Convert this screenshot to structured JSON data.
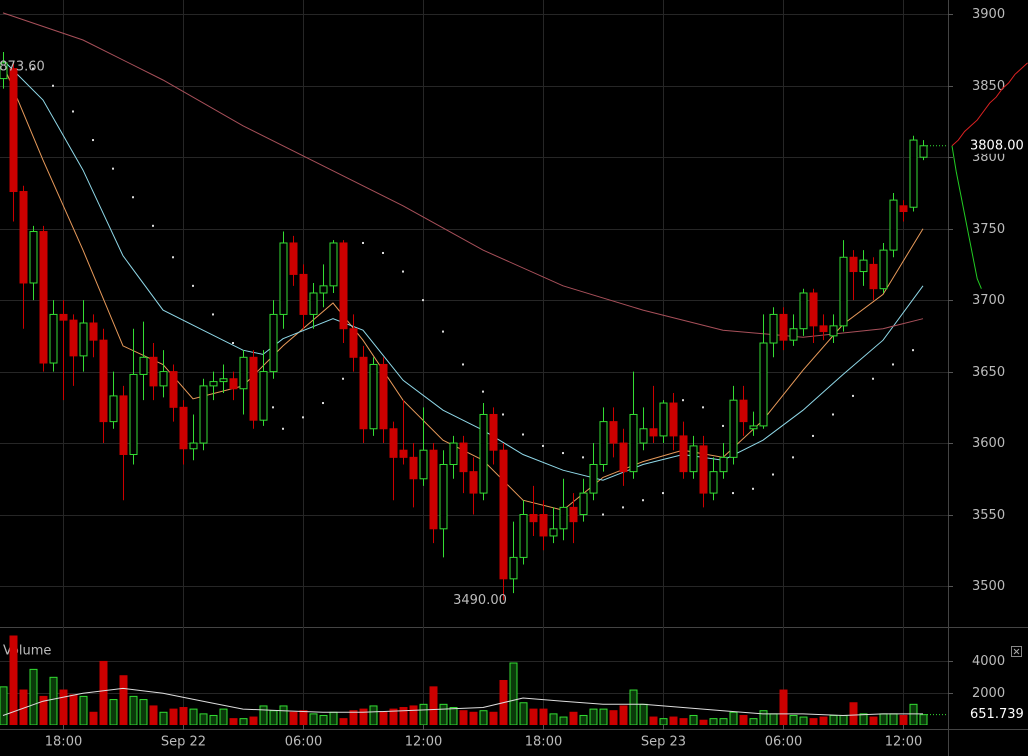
{
  "chart_data": {
    "type": "candlestick",
    "up_color": "#33dd33",
    "down_color": "#cc0000",
    "xlim": [
      -0.3,
      94.5
    ],
    "xticks": [
      {
        "value": 6,
        "label": "18:00"
      },
      {
        "value": 18,
        "label": "Sep 22"
      },
      {
        "value": 30,
        "label": "06:00"
      },
      {
        "value": 42,
        "label": "12:00"
      },
      {
        "value": 54,
        "label": "18:00"
      },
      {
        "value": 66,
        "label": "Sep 23"
      },
      {
        "value": 78,
        "label": "06:00"
      },
      {
        "value": 90,
        "label": "12:00"
      }
    ],
    "ylim": [
      3472,
      3910
    ],
    "yticks": [
      3500,
      3550,
      3600,
      3650,
      3700,
      3750,
      3800,
      3850,
      3900
    ],
    "grid": true,
    "high_label": {
      "value": 3873.6,
      "label": "3873.60"
    },
    "low_label": {
      "value": 3490,
      "label": "3490.00"
    },
    "last_label": {
      "value": 3808,
      "label": "3808.00"
    },
    "ohlc": [
      [
        3855,
        3873.6,
        3848,
        3866
      ],
      [
        3862,
        3866,
        3755,
        3776
      ],
      [
        3776,
        3780,
        3680,
        3712
      ],
      [
        3712,
        3752,
        3700,
        3748
      ],
      [
        3748,
        3752,
        3650,
        3656
      ],
      [
        3656,
        3700,
        3650,
        3690
      ],
      [
        3690,
        3700,
        3630,
        3686
      ],
      [
        3686,
        3690,
        3640,
        3661
      ],
      [
        3661,
        3700,
        3650,
        3684
      ],
      [
        3684,
        3690,
        3660,
        3672
      ],
      [
        3672,
        3680,
        3600,
        3615
      ],
      [
        3615,
        3650,
        3610,
        3633
      ],
      [
        3633,
        3640,
        3560,
        3592
      ],
      [
        3592,
        3680,
        3585,
        3648
      ],
      [
        3648,
        3685,
        3630,
        3660
      ],
      [
        3660,
        3670,
        3630,
        3640
      ],
      [
        3640,
        3665,
        3632,
        3650
      ],
      [
        3650,
        3655,
        3615,
        3625
      ],
      [
        3625,
        3630,
        3585,
        3596
      ],
      [
        3596,
        3620,
        3588,
        3600
      ],
      [
        3600,
        3645,
        3595,
        3640
      ],
      [
        3640,
        3650,
        3630,
        3643
      ],
      [
        3643,
        3655,
        3635,
        3645
      ],
      [
        3645,
        3650,
        3630,
        3638
      ],
      [
        3638,
        3665,
        3620,
        3660
      ],
      [
        3660,
        3665,
        3610,
        3616
      ],
      [
        3616,
        3665,
        3612,
        3650
      ],
      [
        3650,
        3700,
        3645,
        3690
      ],
      [
        3690,
        3748,
        3680,
        3740
      ],
      [
        3740,
        3745,
        3710,
        3718
      ],
      [
        3718,
        3725,
        3680,
        3690
      ],
      [
        3690,
        3712,
        3680,
        3705
      ],
      [
        3705,
        3725,
        3695,
        3710
      ],
      [
        3710,
        3742,
        3705,
        3740
      ],
      [
        3740,
        3742,
        3670,
        3680
      ],
      [
        3680,
        3690,
        3650,
        3660
      ],
      [
        3660,
        3668,
        3600,
        3610
      ],
      [
        3610,
        3660,
        3605,
        3655
      ],
      [
        3655,
        3660,
        3600,
        3610
      ],
      [
        3610,
        3615,
        3560,
        3590
      ],
      [
        3595,
        3630,
        3585,
        3590
      ],
      [
        3590,
        3600,
        3555,
        3575
      ],
      [
        3575,
        3625,
        3570,
        3595
      ],
      [
        3595,
        3600,
        3530,
        3540
      ],
      [
        3540,
        3595,
        3520,
        3585
      ],
      [
        3585,
        3605,
        3575,
        3600
      ],
      [
        3600,
        3605,
        3565,
        3580
      ],
      [
        3580,
        3590,
        3550,
        3565
      ],
      [
        3565,
        3628,
        3560,
        3620
      ],
      [
        3620,
        3625,
        3585,
        3595
      ],
      [
        3595,
        3600,
        3490,
        3505
      ],
      [
        3505,
        3545,
        3495,
        3520
      ],
      [
        3520,
        3560,
        3515,
        3550
      ],
      [
        3550,
        3570,
        3535,
        3545
      ],
      [
        3550,
        3560,
        3525,
        3535
      ],
      [
        3535,
        3555,
        3530,
        3540
      ],
      [
        3540,
        3575,
        3532,
        3555
      ],
      [
        3555,
        3565,
        3530,
        3545
      ],
      [
        3550,
        3575,
        3545,
        3565
      ],
      [
        3565,
        3600,
        3560,
        3585
      ],
      [
        3585,
        3625,
        3580,
        3615
      ],
      [
        3615,
        3625,
        3590,
        3600
      ],
      [
        3600,
        3610,
        3570,
        3580
      ],
      [
        3580,
        3650,
        3575,
        3620
      ],
      [
        3600,
        3625,
        3595,
        3610
      ],
      [
        3610,
        3640,
        3600,
        3605
      ],
      [
        3605,
        3630,
        3600,
        3628
      ],
      [
        3628,
        3635,
        3595,
        3605
      ],
      [
        3605,
        3615,
        3575,
        3580
      ],
      [
        3580,
        3605,
        3575,
        3598
      ],
      [
        3598,
        3605,
        3555,
        3565
      ],
      [
        3565,
        3590,
        3560,
        3580
      ],
      [
        3580,
        3600,
        3575,
        3590
      ],
      [
        3590,
        3640,
        3585,
        3630
      ],
      [
        3630,
        3640,
        3605,
        3615
      ],
      [
        3610,
        3622,
        3605,
        3612
      ],
      [
        3612,
        3690,
        3610,
        3670
      ],
      [
        3670,
        3695,
        3660,
        3690
      ],
      [
        3690,
        3695,
        3665,
        3672
      ],
      [
        3672,
        3690,
        3668,
        3680
      ],
      [
        3680,
        3708,
        3675,
        3705
      ],
      [
        3705,
        3708,
        3670,
        3682
      ],
      [
        3682,
        3690,
        3672,
        3678
      ],
      [
        3675,
        3690,
        3670,
        3682
      ],
      [
        3682,
        3742,
        3678,
        3730
      ],
      [
        3730,
        3735,
        3700,
        3720
      ],
      [
        3720,
        3735,
        3710,
        3728
      ],
      [
        3725,
        3730,
        3700,
        3708
      ],
      [
        3708,
        3740,
        3705,
        3735
      ],
      [
        3735,
        3775,
        3730,
        3770
      ],
      [
        3766,
        3770,
        3755,
        3762
      ],
      [
        3765,
        3815,
        3762,
        3812
      ],
      [
        3800,
        3812,
        3798,
        3808
      ]
    ],
    "indicators": [
      {
        "color": "#e89a5a",
        "x": [
          0,
          4,
          8,
          12,
          16,
          19,
          24,
          28,
          33,
          36,
          40,
          44,
          48,
          52,
          56,
          60,
          64,
          68,
          72,
          76,
          80,
          84,
          88,
          92
        ],
        "values": [
          3865,
          3798,
          3735,
          3668,
          3655,
          3631,
          3640,
          3668,
          3698,
          3672,
          3630,
          3602,
          3588,
          3560,
          3553,
          3576,
          3587,
          3595,
          3590,
          3616,
          3651,
          3683,
          3704,
          3750
        ]
      },
      {
        "color": "#8fd8e8",
        "x": [
          0,
          4,
          8,
          12,
          16,
          20,
          24,
          26,
          28,
          33,
          36,
          40,
          44,
          48,
          52,
          56,
          60,
          64,
          68,
          72,
          76,
          80,
          84,
          88,
          92
        ],
        "values": [
          3868,
          3840,
          3791,
          3731,
          3693,
          3679,
          3665,
          3662,
          3673,
          3687,
          3679,
          3644,
          3623,
          3609,
          3592,
          3581,
          3574,
          3585,
          3592,
          3588,
          3602,
          3623,
          3648,
          3672,
          3710
        ]
      },
      {
        "color": "#a8505a",
        "x": [
          0,
          8,
          16,
          24,
          32,
          40,
          48,
          56,
          64,
          72,
          80,
          88,
          92
        ],
        "values": [
          3901,
          3882,
          3854,
          3822,
          3794,
          3766,
          3735,
          3710,
          3693,
          3679,
          3674,
          3680,
          3687
        ]
      }
    ],
    "sar": {
      "color": "#dddddd",
      "x": [
        3,
        5,
        7,
        9,
        11,
        13,
        15,
        17,
        19,
        21,
        23,
        25,
        27,
        28,
        30,
        32,
        34,
        36,
        38,
        40,
        42,
        44,
        46,
        48,
        50,
        52,
        54,
        56,
        58,
        60,
        62,
        64,
        66,
        68,
        70,
        72,
        73,
        75,
        77,
        79,
        81,
        83,
        85,
        87,
        89,
        91
      ],
      "values": [
        3862,
        3850,
        3832,
        3812,
        3792,
        3772,
        3752,
        3730,
        3710,
        3690,
        3670,
        3650,
        3625,
        3610,
        3618,
        3628,
        3645,
        3740,
        3733,
        3720,
        3700,
        3678,
        3655,
        3636,
        3620,
        3606,
        3598,
        3593,
        3590,
        3550,
        3555,
        3560,
        3565,
        3630,
        3625,
        3612,
        3565,
        3568,
        3578,
        3590,
        3605,
        3620,
        3633,
        3645,
        3655,
        3665
      ]
    },
    "depth": {
      "ask_color": "#dd2222",
      "bid_color": "#22cc22",
      "asks": [
        3808,
        3812,
        3818,
        3822,
        3826,
        3832,
        3838,
        3842,
        3848,
        3852,
        3858,
        3862,
        3866
      ],
      "bids": [
        3808,
        3790,
        3775,
        3760,
        3745,
        3730,
        3715,
        3708
      ]
    },
    "volume_panel": {
      "title": "Volume",
      "ylim": [
        0,
        5600
      ],
      "yticks": [
        2000,
        4000
      ],
      "values": [
        2400,
        5600,
        2200,
        3500,
        1800,
        3000,
        2200,
        1900,
        1800,
        800,
        4000,
        1600,
        3100,
        1800,
        1600,
        1200,
        800,
        1000,
        1100,
        1000,
        700,
        600,
        1000,
        400,
        400,
        500,
        1200,
        900,
        1200,
        800,
        900,
        700,
        600,
        800,
        400,
        900,
        1000,
        1200,
        800,
        1000,
        1100,
        1200,
        1300,
        2400,
        1300,
        1100,
        900,
        800,
        900,
        800,
        2800,
        3900,
        1400,
        1000,
        1000,
        700,
        500,
        800,
        600,
        1000,
        1000,
        900,
        1200,
        2200,
        1300,
        500,
        400,
        500,
        400,
        600,
        300,
        400,
        400,
        800,
        600,
        400,
        900,
        700,
        2200,
        600,
        500,
        400,
        500,
        600,
        600,
        1400,
        700,
        500,
        700,
        700,
        600,
        1300,
        651.739
      ],
      "ma": {
        "color": "#dddddd",
        "x": [
          0,
          4,
          8,
          12,
          16,
          20,
          24,
          28,
          32,
          36,
          40,
          44,
          48,
          52,
          56,
          60,
          64,
          68,
          72,
          76,
          80,
          84,
          88,
          92
        ],
        "values": [
          600,
          1500,
          2000,
          2300,
          2000,
          1500,
          1000,
          900,
          800,
          800,
          900,
          1000,
          1100,
          1700,
          1500,
          1300,
          1300,
          1100,
          900,
          700,
          700,
          600,
          700,
          700
        ]
      }
    }
  }
}
